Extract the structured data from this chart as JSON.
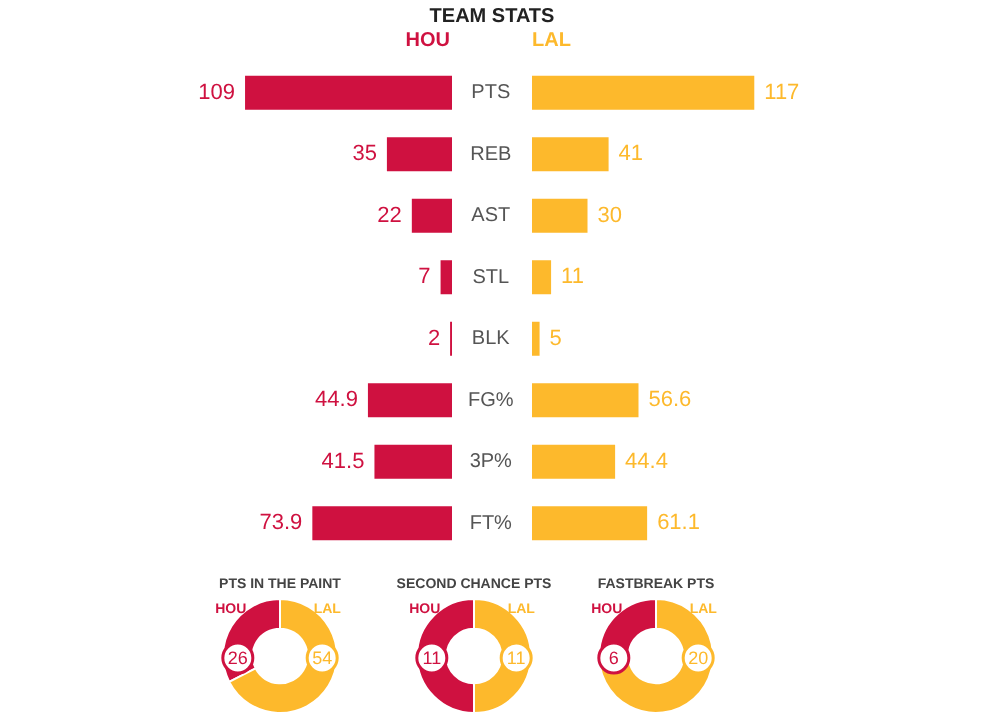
{
  "chart_data": [
    {
      "type": "bar",
      "title": "TEAM STATS",
      "orientation": "horizontal",
      "categories": [
        "PTS",
        "REB",
        "AST",
        "STL",
        "BLK",
        "FG%",
        "3P%",
        "FT%"
      ],
      "series": [
        {
          "name": "HOU",
          "color": "#cf1140",
          "values": [
            109,
            35,
            22,
            7,
            2,
            44.9,
            41.5,
            73.9
          ]
        }
      ],
      "data_labels": true,
      "legend": "top",
      "tick_labels": "y"
    },
    {
      "type": "bar",
      "orientation": "horizontal",
      "categories": [
        null,
        null,
        null,
        null,
        null,
        null,
        null,
        null
      ],
      "series": [
        {
          "name": "LAL",
          "color": "#fdb92c",
          "values": [
            117,
            41,
            30,
            11,
            5,
            56.6,
            44.4,
            61.1
          ]
        }
      ],
      "data_labels": true,
      "legend": "top"
    },
    {
      "type": "donut",
      "title": "PTS IN THE PAINT",
      "categories": [
        "HOU",
        "LAL"
      ],
      "values": [
        26,
        54
      ],
      "colors": [
        "#cf1140",
        "#fdb92c"
      ],
      "data_labels": true
    },
    {
      "type": "donut",
      "title": "SECOND CHANCE PTS",
      "categories": [
        "HOU",
        "LAL"
      ],
      "values": [
        11,
        11
      ],
      "colors": [
        "#cf1140",
        "#fdb92c"
      ],
      "data_labels": true
    },
    {
      "type": "donut",
      "title": "FASTBREAK PTS",
      "categories": [
        "HOU",
        "LAL"
      ],
      "values": [
        6,
        20
      ],
      "colors": [
        "#cf1140",
        "#fdb92c"
      ],
      "data_labels": true
    }
  ]
}
